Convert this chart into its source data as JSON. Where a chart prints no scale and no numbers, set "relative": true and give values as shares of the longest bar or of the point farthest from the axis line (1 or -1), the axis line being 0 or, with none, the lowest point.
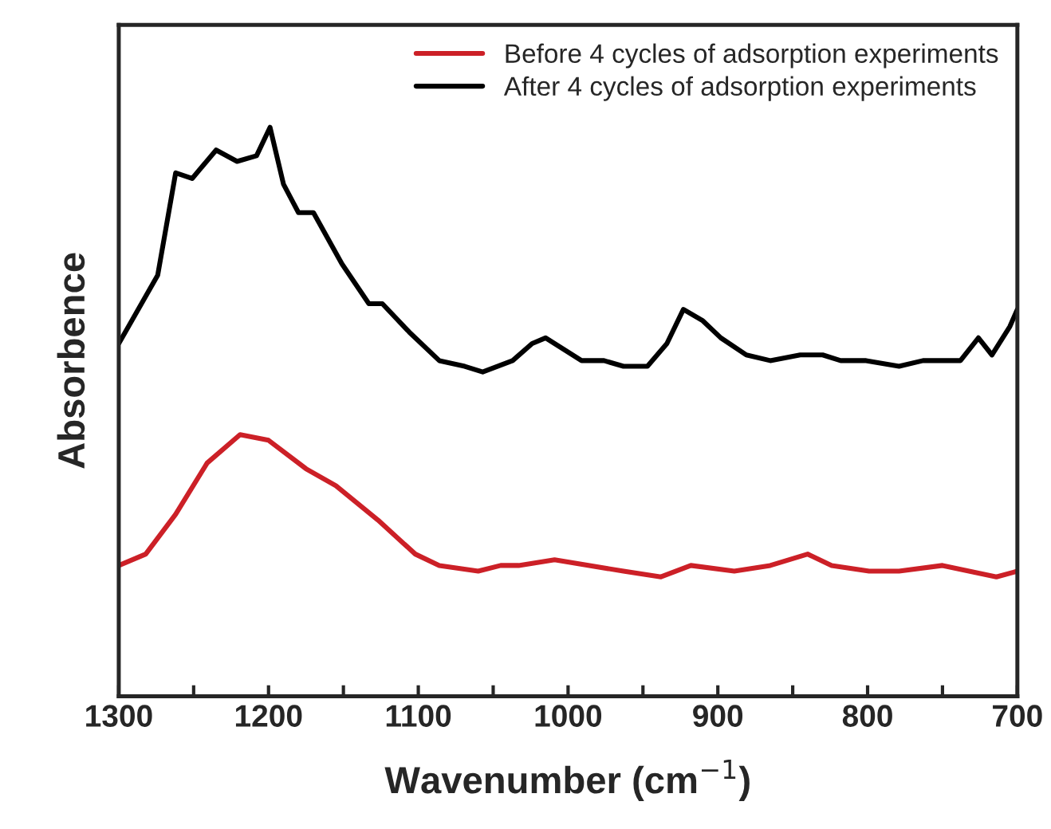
{
  "chart_data": {
    "type": "line",
    "relative": true,
    "xlabel": "Wavenumber (cm$^{−1}$)",
    "ylabel": "Absorbence",
    "xlim": [
      1300,
      700
    ],
    "xticks": [
      1300,
      {
        "value": 1250,
        "label": null
      },
      1200,
      {
        "value": 1150,
        "label": null
      },
      1100,
      {
        "value": 1050,
        "label": null
      },
      1000,
      {
        "value": 950,
        "label": null
      },
      900,
      {
        "value": 850,
        "label": null
      },
      800,
      {
        "value": 750,
        "label": null
      },
      700
    ],
    "tick_labels": "x",
    "legend": "top right",
    "grid": false,
    "series": [
      {
        "name": "Before 4 cycles of adsorption experiments",
        "color": "#cc2027",
        "x": [
          1300,
          1282,
          1262,
          1241,
          1219,
          1200,
          1175,
          1155,
          1127,
          1102,
          1086,
          1060,
          1045,
          1033,
          1009,
          963,
          938,
          918,
          889,
          865,
          840,
          824,
          799,
          779,
          750,
          714,
          700
        ],
        "values": [
          0.23,
          0.25,
          0.32,
          0.41,
          0.46,
          0.45,
          0.4,
          0.37,
          0.31,
          0.25,
          0.23,
          0.22,
          0.23,
          0.23,
          0.24,
          0.22,
          0.21,
          0.23,
          0.22,
          0.23,
          0.25,
          0.23,
          0.22,
          0.22,
          0.23,
          0.21,
          0.22
        ]
      },
      {
        "name": "After 4 cycles of adsorption experiments",
        "color": "#000000",
        "x": [
          1300,
          1274,
          1262,
          1251,
          1235,
          1221,
          1208,
          1199,
          1190,
          1180,
          1170,
          1151,
          1133,
          1124,
          1106,
          1086,
          1069,
          1057,
          1037,
          1024,
          1015,
          991,
          976,
          963,
          947,
          934,
          923,
          910,
          898,
          881,
          865,
          845,
          830,
          818,
          801,
          779,
          763,
          738,
          726,
          717,
          705,
          700
        ],
        "values": [
          0.62,
          0.74,
          0.92,
          0.91,
          0.96,
          0.94,
          0.95,
          1.0,
          0.9,
          0.85,
          0.85,
          0.76,
          0.69,
          0.69,
          0.64,
          0.59,
          0.58,
          0.57,
          0.59,
          0.62,
          0.63,
          0.59,
          0.59,
          0.58,
          0.58,
          0.62,
          0.68,
          0.66,
          0.63,
          0.6,
          0.59,
          0.6,
          0.6,
          0.59,
          0.59,
          0.58,
          0.59,
          0.59,
          0.63,
          0.6,
          0.65,
          0.68
        ]
      }
    ]
  }
}
